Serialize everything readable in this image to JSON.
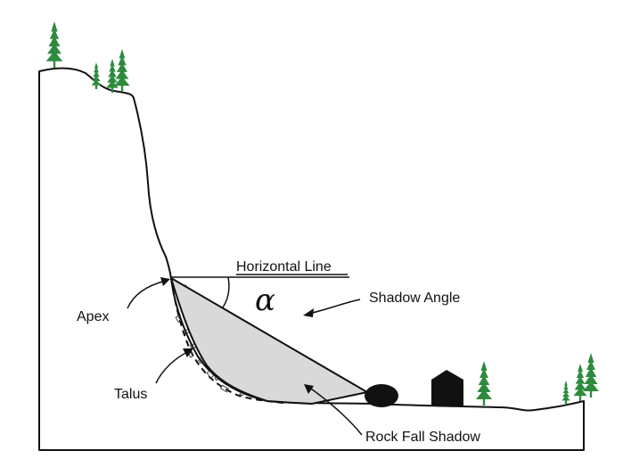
{
  "labels": {
    "horizontal_line": "Horizontal Line",
    "shadow_angle": "Shadow Angle",
    "alpha_symbol": "α",
    "apex": "Apex",
    "talus": "Talus",
    "rock_fall_shadow": "Rock Fall Shadow"
  },
  "colors": {
    "tree": "#2e8b3e",
    "shadow_fill": "#d9d9d9",
    "rock": "#111111",
    "line": "#111111"
  }
}
